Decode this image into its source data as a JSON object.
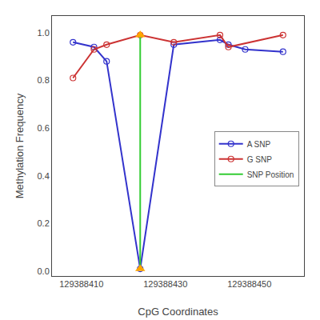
{
  "chart_data": {
    "type": "line",
    "xlabel": "CpG Coordinates",
    "ylabel": "Methylation Frequency",
    "series": [
      {
        "name": "A SNP",
        "color": "#3333cc",
        "marker": "circle-open",
        "line_style": "solid",
        "x": [
          129388408,
          129388413,
          129388416,
          129388424,
          129388432,
          129388443,
          129388445,
          129388449,
          129388458
        ],
        "values": [
          0.96,
          0.94,
          0.88,
          0.01,
          0.95,
          0.97,
          0.95,
          0.93,
          0.92
        ]
      },
      {
        "name": "G SNP",
        "color": "#cc3333",
        "marker": "circle-open",
        "line_style": "solid",
        "x": [
          129388408,
          129388413,
          129388416,
          129388424,
          129388432,
          129388443,
          129388445,
          129388458
        ],
        "values": [
          0.81,
          0.93,
          0.95,
          0.99,
          0.96,
          0.99,
          0.94,
          0.99
        ]
      },
      {
        "name": "SNP Position",
        "color": "#33cc33",
        "line_style": "solid",
        "x": [
          129388424,
          129388424
        ],
        "values": [
          0.01,
          0.99
        ]
      },
      {
        "color": "#FFA500",
        "marker": "triangle-up",
        "x": [
          129388424,
          129388424
        ],
        "values": [
          0.99,
          0.01
        ]
      }
    ],
    "xlim": [
      129388403,
      129388463
    ],
    "ylim": [
      -0.02,
      1.07
    ],
    "xticks": [
      129388410,
      129388430,
      129388450
    ],
    "yticks": [
      {
        "value": 0.0,
        "label": "0.0"
      },
      0.2,
      0.4,
      0.6,
      0.8,
      {
        "value": 1.0,
        "label": "1.0"
      }
    ],
    "grid": false,
    "legend": "right"
  }
}
